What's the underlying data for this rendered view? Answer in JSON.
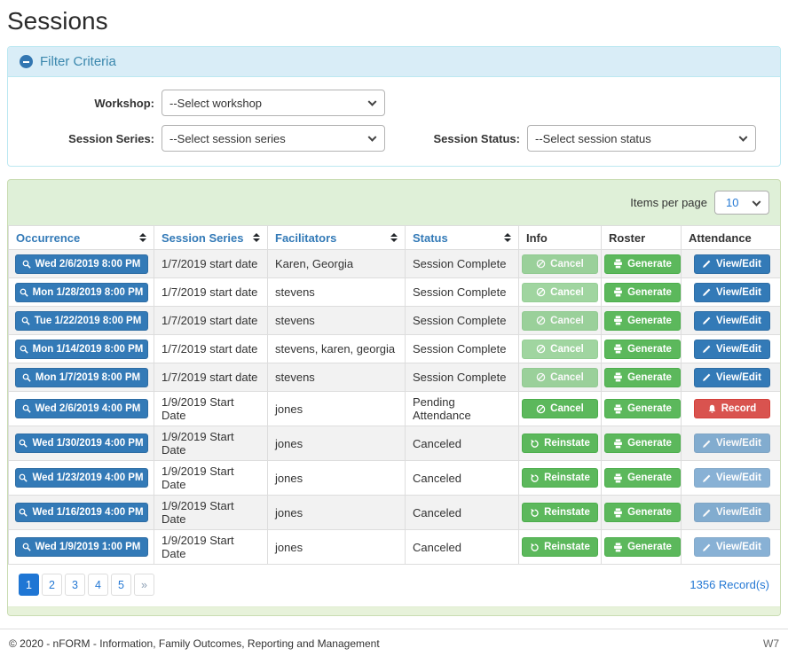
{
  "page_title": "Sessions",
  "filter": {
    "title": "Filter Criteria",
    "fields": {
      "workshop": {
        "label": "Workshop:",
        "value": "--Select workshop"
      },
      "session_series": {
        "label": "Session Series:",
        "value": "--Select session series"
      },
      "session_status": {
        "label": "Session Status:",
        "value": "--Select session status"
      }
    }
  },
  "table": {
    "items_per_page_label": "Items per page",
    "items_per_page_value": "10",
    "columns": [
      {
        "label": "Occurrence",
        "sortable": true
      },
      {
        "label": "Session Series",
        "sortable": true
      },
      {
        "label": "Facilitators",
        "sortable": true
      },
      {
        "label": "Status",
        "sortable": true
      },
      {
        "label": "Info",
        "sortable": false
      },
      {
        "label": "Roster",
        "sortable": false
      },
      {
        "label": "Attendance",
        "sortable": false
      }
    ],
    "rows": [
      {
        "occurrence": "Wed 2/6/2019 8:00 PM",
        "session_series": "1/7/2019 start date",
        "facilitators": "Karen, Georgia",
        "status": "Session Complete",
        "info": {
          "label": "Cancel",
          "icon": "ban-icon",
          "variant": "success",
          "disabled": true
        },
        "roster": {
          "label": "Generate",
          "icon": "printer-icon",
          "variant": "success",
          "disabled": false
        },
        "attendance": {
          "label": "View/Edit",
          "icon": "pencil-icon",
          "variant": "primary",
          "disabled": false
        }
      },
      {
        "occurrence": "Mon 1/28/2019 8:00 PM",
        "session_series": "1/7/2019 start date",
        "facilitators": "stevens",
        "status": "Session Complete",
        "info": {
          "label": "Cancel",
          "icon": "ban-icon",
          "variant": "success",
          "disabled": true
        },
        "roster": {
          "label": "Generate",
          "icon": "printer-icon",
          "variant": "success",
          "disabled": false
        },
        "attendance": {
          "label": "View/Edit",
          "icon": "pencil-icon",
          "variant": "primary",
          "disabled": false
        }
      },
      {
        "occurrence": "Tue 1/22/2019 8:00 PM",
        "session_series": "1/7/2019 start date",
        "facilitators": "stevens",
        "status": "Session Complete",
        "info": {
          "label": "Cancel",
          "icon": "ban-icon",
          "variant": "success",
          "disabled": true
        },
        "roster": {
          "label": "Generate",
          "icon": "printer-icon",
          "variant": "success",
          "disabled": false
        },
        "attendance": {
          "label": "View/Edit",
          "icon": "pencil-icon",
          "variant": "primary",
          "disabled": false
        }
      },
      {
        "occurrence": "Mon 1/14/2019 8:00 PM",
        "session_series": "1/7/2019 start date",
        "facilitators": "stevens, karen, georgia",
        "status": "Session Complete",
        "info": {
          "label": "Cancel",
          "icon": "ban-icon",
          "variant": "success",
          "disabled": true
        },
        "roster": {
          "label": "Generate",
          "icon": "printer-icon",
          "variant": "success",
          "disabled": false
        },
        "attendance": {
          "label": "View/Edit",
          "icon": "pencil-icon",
          "variant": "primary",
          "disabled": false
        }
      },
      {
        "occurrence": "Mon 1/7/2019 8:00 PM",
        "session_series": "1/7/2019 start date",
        "facilitators": "stevens",
        "status": "Session Complete",
        "info": {
          "label": "Cancel",
          "icon": "ban-icon",
          "variant": "success",
          "disabled": true
        },
        "roster": {
          "label": "Generate",
          "icon": "printer-icon",
          "variant": "success",
          "disabled": false
        },
        "attendance": {
          "label": "View/Edit",
          "icon": "pencil-icon",
          "variant": "primary",
          "disabled": false
        }
      },
      {
        "occurrence": "Wed 2/6/2019 4:00 PM",
        "session_series": "1/9/2019 Start Date",
        "facilitators": "jones",
        "status": "Pending Attendance",
        "info": {
          "label": "Cancel",
          "icon": "ban-icon",
          "variant": "success",
          "disabled": false
        },
        "roster": {
          "label": "Generate",
          "icon": "printer-icon",
          "variant": "success",
          "disabled": false
        },
        "attendance": {
          "label": "Record",
          "icon": "bell-icon",
          "variant": "danger",
          "disabled": false
        }
      },
      {
        "occurrence": "Wed 1/30/2019 4:00 PM",
        "session_series": "1/9/2019 Start Date",
        "facilitators": "jones",
        "status": "Canceled",
        "info": {
          "label": "Reinstate",
          "icon": "undo-icon",
          "variant": "success",
          "disabled": false
        },
        "roster": {
          "label": "Generate",
          "icon": "printer-icon",
          "variant": "success",
          "disabled": false
        },
        "attendance": {
          "label": "View/Edit",
          "icon": "pencil-icon",
          "variant": "primary",
          "disabled": true
        }
      },
      {
        "occurrence": "Wed 1/23/2019 4:00 PM",
        "session_series": "1/9/2019 Start Date",
        "facilitators": "jones",
        "status": "Canceled",
        "info": {
          "label": "Reinstate",
          "icon": "undo-icon",
          "variant": "success",
          "disabled": false
        },
        "roster": {
          "label": "Generate",
          "icon": "printer-icon",
          "variant": "success",
          "disabled": false
        },
        "attendance": {
          "label": "View/Edit",
          "icon": "pencil-icon",
          "variant": "primary",
          "disabled": true
        }
      },
      {
        "occurrence": "Wed 1/16/2019 4:00 PM",
        "session_series": "1/9/2019 Start Date",
        "facilitators": "jones",
        "status": "Canceled",
        "info": {
          "label": "Reinstate",
          "icon": "undo-icon",
          "variant": "success",
          "disabled": false
        },
        "roster": {
          "label": "Generate",
          "icon": "printer-icon",
          "variant": "success",
          "disabled": false
        },
        "attendance": {
          "label": "View/Edit",
          "icon": "pencil-icon",
          "variant": "primary",
          "disabled": true
        }
      },
      {
        "occurrence": "Wed 1/9/2019 1:00 PM",
        "session_series": "1/9/2019 Start Date",
        "facilitators": "jones",
        "status": "Canceled",
        "info": {
          "label": "Reinstate",
          "icon": "undo-icon",
          "variant": "success",
          "disabled": false
        },
        "roster": {
          "label": "Generate",
          "icon": "printer-icon",
          "variant": "success",
          "disabled": false
        },
        "attendance": {
          "label": "View/Edit",
          "icon": "pencil-icon",
          "variant": "primary",
          "disabled": true
        }
      }
    ],
    "record_count": "1356 Record(s)"
  },
  "pagination": {
    "pages": [
      "1",
      "2",
      "3",
      "4",
      "5"
    ],
    "active_page": "1",
    "next_label": "»"
  },
  "footer": {
    "copyright": "© 2020 - nFORM - Information, Family Outcomes, Reporting and Management",
    "version": "W7"
  },
  "colors": {
    "primary_blue": "#337ab7",
    "success_green": "#5cb85c",
    "danger_red": "#d9534f",
    "filter_header_bg": "#d9edf7",
    "filter_header_text": "#3a87ad",
    "table_band_bg": "#dff0d8",
    "pagination_active": "#1f76d4",
    "link_blue": "#2478d4"
  }
}
